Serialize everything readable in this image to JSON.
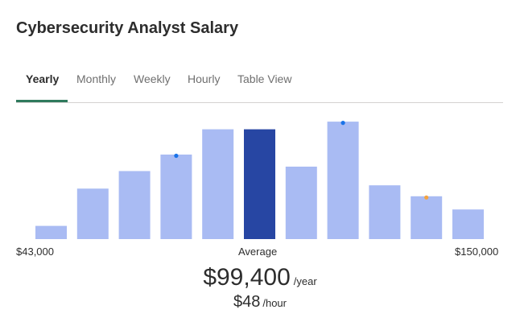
{
  "page_title": "Cybersecurity Analyst Salary",
  "tabs": [
    "Yearly",
    "Monthly",
    "Weekly",
    "Hourly",
    "Table View"
  ],
  "active_tab": "Yearly",
  "colors": {
    "bar": "#a9bbf3",
    "bar_highlight": "#2746a3",
    "marker_blue": "#1a73e8",
    "marker_orange": "#f4a340",
    "tab_indicator": "#2f7a5d"
  },
  "chart_data": {
    "type": "bar",
    "title": "",
    "x_range": [
      "$43,000",
      "$150,000"
    ],
    "x_min_label": "$43,000",
    "x_max_label": "$150,000",
    "average_label": "Average",
    "values": [
      12,
      46,
      62,
      77,
      100,
      100,
      66,
      107,
      49,
      39,
      27
    ],
    "highlight_index": 5,
    "markers": [
      {
        "bar": 3,
        "color": "blue"
      },
      {
        "bar": 7,
        "color": "blue"
      },
      {
        "bar": 9,
        "color": "orange"
      }
    ],
    "ylim": [
      0,
      110
    ]
  },
  "salary": {
    "yearly_amount": "$99,400",
    "yearly_unit": "/year",
    "hourly_amount": "$48",
    "hourly_unit": "/hour"
  }
}
